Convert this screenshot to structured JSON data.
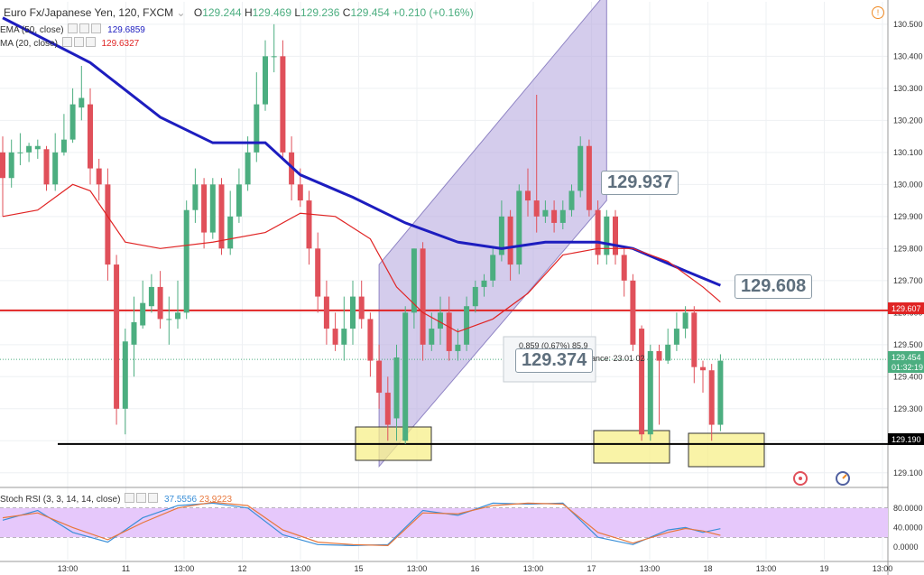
{
  "header": {
    "symbol": "Euro Fx/Japanese Yen, 120, FXCM",
    "ohlc": {
      "o_label": "O",
      "o": "129.244",
      "h_label": "H",
      "h": "129.469",
      "l_label": "L",
      "l": "129.236",
      "c_label": "C",
      "c": "129.454"
    },
    "change": "+0.210 (+0.16%)"
  },
  "indicators": {
    "ema": {
      "label": "EMA (50, close)",
      "value": "129.6859",
      "color": "#1d1dbf"
    },
    "ma": {
      "label": "MA (20, close)",
      "value": "129.6327",
      "color": "#e02424"
    },
    "stoch": {
      "label": "Stoch RSI (3, 3, 14, 14, close)",
      "k": "37.5556",
      "d": "23.9223",
      "k_color": "#3a8fd8",
      "d_color": "#e8763a"
    }
  },
  "callouts": {
    "c1": "129.937",
    "c2": "129.608",
    "c3": "129.374"
  },
  "measure": {
    "range": "0.859 (0.67%)  85.9",
    "bars": "ance: 23.01 02"
  },
  "price_labels": {
    "support": "129.190",
    "resistance": "129.607",
    "last": "129.454",
    "countdown": "01:32:19"
  },
  "colors": {
    "up": "#4cae80",
    "down": "#e0505a",
    "channel": "#b7aadf",
    "stoch_band": "#e6c8fb",
    "highlight": "#f7ef8a"
  },
  "chart_data": {
    "type": "candlestick",
    "y_ticks": [
      129.1,
      129.2,
      129.3,
      129.4,
      129.5,
      129.6,
      129.7,
      129.8,
      129.9,
      130.0,
      130.1,
      130.2,
      130.3,
      130.4,
      130.5
    ],
    "ylim": [
      129.06,
      130.57
    ],
    "x_ticks": [
      "13:00",
      "11",
      "13:00",
      "12",
      "13:00",
      "15",
      "13:00",
      "16",
      "13:00",
      "17",
      "13:00",
      "18",
      "13:00",
      "19",
      "13:00"
    ],
    "horizontal_lines": {
      "support": 129.19,
      "resistance": 129.607
    },
    "candles": [
      [
        130.1,
        130.02,
        130.15,
        129.9
      ],
      [
        130.02,
        130.1,
        130.14,
        129.99
      ],
      [
        130.1,
        130.1,
        130.16,
        130.06
      ],
      [
        130.1,
        130.12,
        130.13,
        130.07
      ],
      [
        130.11,
        130.12,
        130.14,
        130.08
      ],
      [
        130.11,
        130.0,
        130.12,
        129.98
      ],
      [
        130.0,
        130.1,
        130.16,
        129.98
      ],
      [
        130.1,
        130.14,
        130.22,
        130.09
      ],
      [
        130.14,
        130.25,
        130.3,
        130.13
      ],
      [
        130.24,
        130.27,
        130.37,
        130.2
      ],
      [
        130.25,
        130.05,
        130.3,
        130.0
      ],
      [
        130.05,
        130.0,
        130.08,
        129.95
      ],
      [
        130.0,
        129.75,
        130.05,
        129.7
      ],
      [
        129.75,
        129.3,
        129.78,
        129.25
      ],
      [
        129.3,
        129.51,
        129.55,
        129.22
      ],
      [
        129.5,
        129.57,
        129.65,
        129.4
      ],
      [
        129.56,
        129.63,
        129.7,
        129.55
      ],
      [
        129.62,
        129.68,
        129.72,
        129.6
      ],
      [
        129.68,
        129.58,
        129.73,
        129.55
      ],
      [
        129.58,
        129.58,
        129.65,
        129.5
      ],
      [
        129.58,
        129.6,
        129.7,
        129.55
      ],
      [
        129.6,
        129.92,
        129.95,
        129.58
      ],
      [
        129.92,
        130.0,
        130.05,
        129.88
      ],
      [
        130.0,
        129.85,
        130.02,
        129.8
      ],
      [
        129.85,
        130.0,
        130.02,
        129.83
      ],
      [
        130.0,
        129.8,
        130.02,
        129.78
      ],
      [
        129.8,
        129.9,
        129.98,
        129.78
      ],
      [
        129.9,
        130.0,
        130.05,
        129.88
      ],
      [
        130.0,
        130.1,
        130.15,
        129.98
      ],
      [
        130.1,
        130.25,
        130.35,
        130.07
      ],
      [
        130.25,
        130.4,
        130.45,
        130.23
      ],
      [
        130.4,
        130.4,
        130.5,
        130.35
      ],
      [
        130.4,
        130.1,
        130.45,
        130.08
      ],
      [
        130.1,
        130.0,
        130.15,
        129.95
      ],
      [
        130.0,
        129.95,
        130.05,
        129.93
      ],
      [
        129.95,
        129.8,
        129.98,
        129.75
      ],
      [
        129.8,
        129.65,
        129.85,
        129.6
      ],
      [
        129.65,
        129.55,
        129.7,
        129.5
      ],
      [
        129.55,
        129.5,
        129.6,
        129.48
      ],
      [
        129.5,
        129.55,
        129.65,
        129.45
      ],
      [
        129.55,
        129.65,
        129.7,
        129.5
      ],
      [
        129.65,
        129.58,
        129.7,
        129.55
      ],
      [
        129.58,
        129.45,
        129.6,
        129.4
      ],
      [
        129.45,
        129.35,
        129.5,
        129.3
      ],
      [
        129.35,
        129.25,
        129.4,
        129.2
      ],
      [
        129.27,
        129.46,
        129.5,
        129.2
      ],
      [
        129.2,
        129.6,
        129.62,
        129.19
      ],
      [
        129.6,
        129.8,
        129.8,
        129.55
      ],
      [
        129.8,
        129.5,
        129.82,
        129.45
      ],
      [
        129.5,
        129.55,
        129.6,
        129.48
      ],
      [
        129.55,
        129.6,
        129.65,
        129.5
      ],
      [
        129.6,
        129.48,
        129.65,
        129.45
      ],
      [
        129.48,
        129.5,
        129.55,
        129.45
      ],
      [
        129.5,
        129.62,
        129.65,
        129.48
      ],
      [
        129.62,
        129.68,
        129.7,
        129.6
      ],
      [
        129.68,
        129.7,
        129.72,
        129.65
      ],
      [
        129.7,
        129.78,
        129.8,
        129.68
      ],
      [
        129.78,
        129.9,
        129.95,
        129.76
      ],
      [
        129.9,
        129.75,
        129.92,
        129.7
      ],
      [
        129.75,
        129.98,
        130.0,
        129.72
      ],
      [
        129.98,
        129.95,
        130.05,
        129.9
      ],
      [
        129.95,
        129.9,
        130.28,
        129.85
      ],
      [
        129.9,
        129.92,
        129.95,
        129.88
      ],
      [
        129.92,
        129.88,
        129.95,
        129.85
      ],
      [
        129.88,
        129.92,
        129.95,
        129.86
      ],
      [
        129.92,
        129.98,
        130.0,
        129.9
      ],
      [
        129.98,
        130.12,
        130.15,
        129.96
      ],
      [
        130.12,
        129.92,
        130.14,
        129.9
      ],
      [
        129.92,
        129.78,
        129.95,
        129.75
      ],
      [
        129.78,
        129.9,
        129.92,
        129.75
      ],
      [
        129.9,
        129.78,
        129.92,
        129.75
      ],
      [
        129.78,
        129.7,
        129.8,
        129.65
      ],
      [
        129.7,
        129.5,
        129.72,
        129.48
      ],
      [
        129.55,
        129.22,
        129.56,
        129.2
      ],
      [
        129.22,
        129.48,
        129.5,
        129.2
      ],
      [
        129.48,
        129.45,
        129.5,
        129.25
      ],
      [
        129.45,
        129.5,
        129.55,
        129.44
      ],
      [
        129.5,
        129.55,
        129.6,
        129.48
      ],
      [
        129.55,
        129.6,
        129.62,
        129.52
      ],
      [
        129.6,
        129.43,
        129.62,
        129.38
      ],
      [
        129.43,
        129.42,
        129.45,
        129.35
      ],
      [
        129.42,
        129.25,
        129.44,
        129.2
      ],
      [
        129.25,
        129.45,
        129.47,
        129.23
      ]
    ],
    "ema50": [
      [
        0,
        130.52
      ],
      [
        10,
        130.38
      ],
      [
        18,
        130.21
      ],
      [
        24,
        130.13
      ],
      [
        30,
        130.13
      ],
      [
        34,
        130.03
      ],
      [
        40,
        129.96
      ],
      [
        46,
        129.88
      ],
      [
        52,
        129.82
      ],
      [
        57,
        129.8
      ],
      [
        62,
        129.82
      ],
      [
        68,
        129.82
      ],
      [
        72,
        129.8
      ],
      [
        78,
        129.73
      ],
      [
        82,
        129.685
      ]
    ],
    "ma20": [
      [
        0,
        129.9
      ],
      [
        4,
        129.92
      ],
      [
        8,
        130.0
      ],
      [
        10,
        129.98
      ],
      [
        14,
        129.82
      ],
      [
        18,
        129.8
      ],
      [
        24,
        129.82
      ],
      [
        30,
        129.85
      ],
      [
        34,
        129.91
      ],
      [
        38,
        129.9
      ],
      [
        42,
        129.83
      ],
      [
        45,
        129.68
      ],
      [
        48,
        129.6
      ],
      [
        52,
        129.54
      ],
      [
        56,
        129.58
      ],
      [
        60,
        129.66
      ],
      [
        64,
        129.78
      ],
      [
        68,
        129.8
      ],
      [
        72,
        129.8
      ],
      [
        76,
        129.76
      ],
      [
        80,
        129.68
      ],
      [
        82,
        129.633
      ]
    ],
    "stoch_k": [
      [
        0,
        55
      ],
      [
        4,
        75
      ],
      [
        8,
        30
      ],
      [
        12,
        10
      ],
      [
        16,
        60
      ],
      [
        20,
        85
      ],
      [
        24,
        90
      ],
      [
        28,
        80
      ],
      [
        32,
        25
      ],
      [
        36,
        5
      ],
      [
        40,
        3
      ],
      [
        44,
        5
      ],
      [
        48,
        75
      ],
      [
        52,
        65
      ],
      [
        56,
        90
      ],
      [
        60,
        88
      ],
      [
        64,
        90
      ],
      [
        68,
        20
      ],
      [
        72,
        5
      ],
      [
        76,
        35
      ],
      [
        78,
        40
      ],
      [
        80,
        30
      ],
      [
        82,
        37.6
      ]
    ],
    "stoch_d": [
      [
        0,
        60
      ],
      [
        4,
        70
      ],
      [
        8,
        40
      ],
      [
        12,
        15
      ],
      [
        16,
        50
      ],
      [
        20,
        80
      ],
      [
        24,
        92
      ],
      [
        28,
        85
      ],
      [
        32,
        35
      ],
      [
        36,
        10
      ],
      [
        40,
        5
      ],
      [
        44,
        3
      ],
      [
        48,
        70
      ],
      [
        52,
        68
      ],
      [
        56,
        85
      ],
      [
        60,
        90
      ],
      [
        64,
        88
      ],
      [
        68,
        30
      ],
      [
        72,
        8
      ],
      [
        76,
        30
      ],
      [
        78,
        38
      ],
      [
        80,
        33
      ],
      [
        82,
        23.9
      ]
    ],
    "stoch_ticks": [
      80,
      40,
      0
    ],
    "stoch_band": [
      80,
      20
    ]
  }
}
